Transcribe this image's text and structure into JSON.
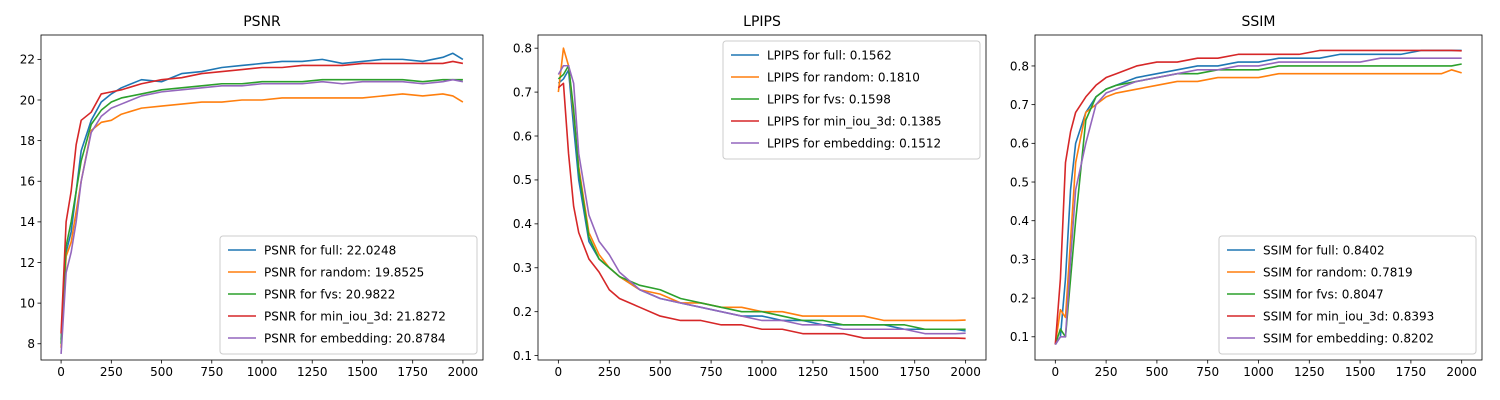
{
  "colors": {
    "full": "#1f77b4",
    "random": "#ff7f0e",
    "fvs": "#2ca02c",
    "min_iou_3d": "#d62728",
    "embedding": "#9467bd"
  },
  "chart_data": [
    {
      "type": "line",
      "title": "PSNR",
      "xlim": [
        -100,
        2100
      ],
      "ylim": [
        7.2,
        23.2
      ],
      "xticks": [
        0,
        250,
        500,
        750,
        1000,
        1250,
        1500,
        1750,
        2000
      ],
      "yticks": [
        8,
        10,
        12,
        14,
        16,
        18,
        20,
        22
      ],
      "legend_position": "lower-right",
      "x": [
        0,
        25,
        50,
        75,
        100,
        150,
        200,
        250,
        300,
        400,
        500,
        600,
        700,
        800,
        900,
        1000,
        1100,
        1200,
        1300,
        1400,
        1500,
        1600,
        1700,
        1800,
        1900,
        1950,
        2000
      ],
      "series": [
        {
          "name": "PSNR for full: 22.0248",
          "key": "full",
          "values": [
            8.2,
            12.5,
            13.5,
            15.5,
            17.5,
            19.0,
            19.9,
            20.3,
            20.6,
            21.0,
            20.9,
            21.3,
            21.4,
            21.6,
            21.7,
            21.8,
            21.9,
            21.9,
            22.0,
            21.8,
            21.9,
            22.0,
            22.0,
            21.9,
            22.1,
            22.3,
            22.0
          ]
        },
        {
          "name": "PSNR for random: 19.8525",
          "key": "random",
          "values": [
            7.8,
            12.3,
            13.0,
            14.5,
            16.0,
            18.5,
            18.9,
            19.0,
            19.3,
            19.6,
            19.7,
            19.8,
            19.9,
            19.9,
            20.0,
            20.0,
            20.1,
            20.1,
            20.1,
            20.1,
            20.1,
            20.2,
            20.3,
            20.2,
            20.3,
            20.2,
            19.9
          ]
        },
        {
          "name": "PSNR for fvs: 20.9822",
          "key": "fvs",
          "values": [
            8.0,
            12.8,
            14.0,
            15.5,
            17.0,
            18.8,
            19.5,
            19.9,
            20.1,
            20.3,
            20.5,
            20.6,
            20.7,
            20.8,
            20.8,
            20.9,
            20.9,
            20.9,
            21.0,
            21.0,
            21.0,
            21.0,
            21.0,
            20.9,
            21.0,
            21.0,
            21.0
          ]
        },
        {
          "name": "PSNR for min_iou_3d: 21.8272",
          "key": "min_iou_3d",
          "values": [
            8.5,
            14.0,
            15.5,
            17.8,
            19.0,
            19.4,
            20.3,
            20.4,
            20.5,
            20.8,
            21.0,
            21.1,
            21.3,
            21.4,
            21.5,
            21.6,
            21.6,
            21.7,
            21.7,
            21.7,
            21.8,
            21.8,
            21.8,
            21.8,
            21.8,
            21.9,
            21.8
          ]
        },
        {
          "name": "PSNR for embedding: 20.8784",
          "key": "embedding",
          "values": [
            7.5,
            11.5,
            12.5,
            14.0,
            16.0,
            18.4,
            19.2,
            19.6,
            19.8,
            20.2,
            20.4,
            20.5,
            20.6,
            20.7,
            20.7,
            20.8,
            20.8,
            20.8,
            20.9,
            20.8,
            20.9,
            20.9,
            20.9,
            20.8,
            20.9,
            21.0,
            20.9
          ]
        }
      ]
    },
    {
      "type": "line",
      "title": "LPIPS",
      "xlim": [
        -100,
        2100
      ],
      "ylim": [
        0.09,
        0.83
      ],
      "xticks": [
        0,
        250,
        500,
        750,
        1000,
        1250,
        1500,
        1750,
        2000
      ],
      "yticks": [
        0.1,
        0.2,
        0.3,
        0.4,
        0.5,
        0.6,
        0.7,
        0.8
      ],
      "legend_position": "upper-right",
      "x": [
        0,
        25,
        50,
        75,
        100,
        150,
        200,
        250,
        300,
        400,
        500,
        600,
        700,
        800,
        900,
        1000,
        1100,
        1200,
        1300,
        1400,
        1500,
        1600,
        1700,
        1800,
        1900,
        1950,
        2000
      ],
      "series": [
        {
          "name": "LPIPS for full: 0.1562",
          "key": "full",
          "values": [
            0.72,
            0.73,
            0.75,
            0.62,
            0.5,
            0.36,
            0.32,
            0.3,
            0.28,
            0.25,
            0.23,
            0.22,
            0.21,
            0.2,
            0.19,
            0.19,
            0.18,
            0.18,
            0.17,
            0.17,
            0.17,
            0.17,
            0.16,
            0.16,
            0.16,
            0.16,
            0.156
          ]
        },
        {
          "name": "LPIPS for random: 0.1810",
          "key": "random",
          "values": [
            0.7,
            0.8,
            0.76,
            0.65,
            0.53,
            0.38,
            0.33,
            0.3,
            0.28,
            0.25,
            0.24,
            0.22,
            0.22,
            0.21,
            0.21,
            0.2,
            0.2,
            0.19,
            0.19,
            0.19,
            0.19,
            0.18,
            0.18,
            0.18,
            0.18,
            0.18,
            0.181
          ]
        },
        {
          "name": "LPIPS for fvs: 0.1598",
          "key": "fvs",
          "values": [
            0.73,
            0.74,
            0.76,
            0.66,
            0.52,
            0.37,
            0.32,
            0.3,
            0.28,
            0.26,
            0.25,
            0.23,
            0.22,
            0.21,
            0.2,
            0.2,
            0.19,
            0.18,
            0.18,
            0.17,
            0.17,
            0.17,
            0.17,
            0.16,
            0.16,
            0.16,
            0.16
          ]
        },
        {
          "name": "LPIPS for min_iou_3d: 0.1385",
          "key": "min_iou_3d",
          "values": [
            0.71,
            0.72,
            0.56,
            0.44,
            0.38,
            0.32,
            0.29,
            0.25,
            0.23,
            0.21,
            0.19,
            0.18,
            0.18,
            0.17,
            0.17,
            0.16,
            0.16,
            0.15,
            0.15,
            0.15,
            0.14,
            0.14,
            0.14,
            0.14,
            0.14,
            0.14,
            0.139
          ]
        },
        {
          "name": "LPIPS for embedding: 0.1512",
          "key": "embedding",
          "values": [
            0.74,
            0.76,
            0.76,
            0.72,
            0.56,
            0.42,
            0.36,
            0.33,
            0.29,
            0.25,
            0.23,
            0.22,
            0.21,
            0.2,
            0.19,
            0.18,
            0.18,
            0.17,
            0.17,
            0.16,
            0.16,
            0.16,
            0.16,
            0.15,
            0.15,
            0.15,
            0.151
          ]
        }
      ]
    },
    {
      "type": "line",
      "title": "SSIM",
      "xlim": [
        -100,
        2100
      ],
      "ylim": [
        0.04,
        0.88
      ],
      "xticks": [
        0,
        250,
        500,
        750,
        1000,
        1250,
        1500,
        1750,
        2000
      ],
      "yticks": [
        0.1,
        0.2,
        0.3,
        0.4,
        0.5,
        0.6,
        0.7,
        0.8
      ],
      "legend_position": "lower-right",
      "x": [
        0,
        25,
        50,
        75,
        100,
        150,
        200,
        250,
        300,
        400,
        500,
        600,
        700,
        800,
        900,
        1000,
        1100,
        1200,
        1300,
        1400,
        1500,
        1600,
        1700,
        1800,
        1900,
        1950,
        2000
      ],
      "series": [
        {
          "name": "SSIM for full: 0.8402",
          "key": "full",
          "values": [
            0.08,
            0.1,
            0.25,
            0.48,
            0.6,
            0.68,
            0.72,
            0.74,
            0.75,
            0.77,
            0.78,
            0.79,
            0.8,
            0.8,
            0.81,
            0.81,
            0.82,
            0.82,
            0.82,
            0.83,
            0.83,
            0.83,
            0.83,
            0.84,
            0.84,
            0.84,
            0.84
          ]
        },
        {
          "name": "SSIM for random: 0.7819",
          "key": "random",
          "values": [
            0.08,
            0.17,
            0.15,
            0.35,
            0.55,
            0.68,
            0.7,
            0.72,
            0.73,
            0.74,
            0.75,
            0.76,
            0.76,
            0.77,
            0.77,
            0.77,
            0.78,
            0.78,
            0.78,
            0.78,
            0.78,
            0.78,
            0.78,
            0.78,
            0.78,
            0.79,
            0.782
          ]
        },
        {
          "name": "SSIM for fvs: 0.8047",
          "key": "fvs",
          "values": [
            0.08,
            0.12,
            0.1,
            0.25,
            0.4,
            0.66,
            0.72,
            0.74,
            0.75,
            0.76,
            0.77,
            0.78,
            0.78,
            0.79,
            0.79,
            0.79,
            0.8,
            0.8,
            0.8,
            0.8,
            0.8,
            0.8,
            0.8,
            0.8,
            0.8,
            0.8,
            0.805
          ]
        },
        {
          "name": "SSIM for min_iou_3d: 0.8393",
          "key": "min_iou_3d",
          "values": [
            0.08,
            0.25,
            0.55,
            0.63,
            0.68,
            0.72,
            0.75,
            0.77,
            0.78,
            0.8,
            0.81,
            0.81,
            0.82,
            0.82,
            0.83,
            0.83,
            0.83,
            0.83,
            0.84,
            0.84,
            0.84,
            0.84,
            0.84,
            0.84,
            0.84,
            0.84,
            0.839
          ]
        },
        {
          "name": "SSIM for embedding: 0.8202",
          "key": "embedding",
          "values": [
            0.08,
            0.1,
            0.1,
            0.3,
            0.48,
            0.6,
            0.7,
            0.73,
            0.74,
            0.76,
            0.77,
            0.78,
            0.79,
            0.79,
            0.8,
            0.8,
            0.81,
            0.81,
            0.81,
            0.81,
            0.81,
            0.82,
            0.82,
            0.82,
            0.82,
            0.82,
            0.82
          ]
        }
      ]
    }
  ]
}
